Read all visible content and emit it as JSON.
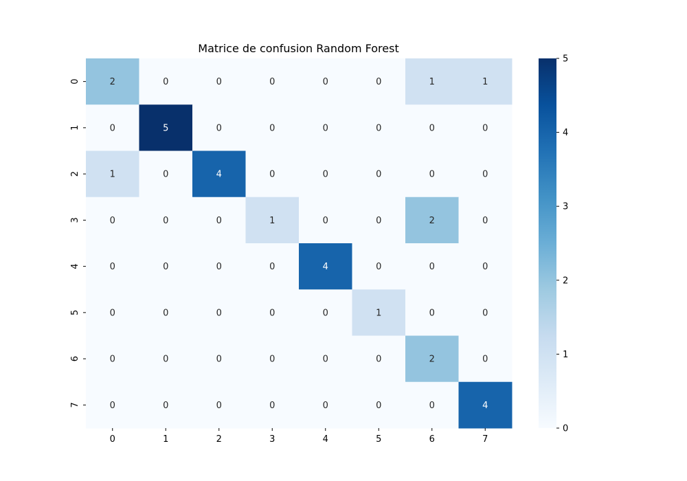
{
  "chart_data": {
    "type": "heatmap",
    "title": "Matrice de confusion Random Forest",
    "xlabel": "",
    "ylabel": "",
    "x_categories": [
      "0",
      "1",
      "2",
      "3",
      "4",
      "5",
      "6",
      "7"
    ],
    "y_categories": [
      "0",
      "1",
      "2",
      "3",
      "4",
      "5",
      "6",
      "7"
    ],
    "values": [
      [
        2,
        0,
        0,
        0,
        0,
        0,
        1,
        1
      ],
      [
        0,
        5,
        0,
        0,
        0,
        0,
        0,
        0
      ],
      [
        1,
        0,
        4,
        0,
        0,
        0,
        0,
        0
      ],
      [
        0,
        0,
        0,
        1,
        0,
        0,
        2,
        0
      ],
      [
        0,
        0,
        0,
        0,
        4,
        0,
        0,
        0
      ],
      [
        0,
        0,
        0,
        0,
        0,
        1,
        0,
        0
      ],
      [
        0,
        0,
        0,
        0,
        0,
        0,
        2,
        0
      ],
      [
        0,
        0,
        0,
        0,
        0,
        0,
        0,
        4
      ]
    ],
    "colormap": "Blues",
    "colorbar": {
      "min": 0,
      "max": 5,
      "ticks": [
        "0",
        "1",
        "2",
        "3",
        "4",
        "5"
      ]
    },
    "annotated": true,
    "grid": false
  }
}
